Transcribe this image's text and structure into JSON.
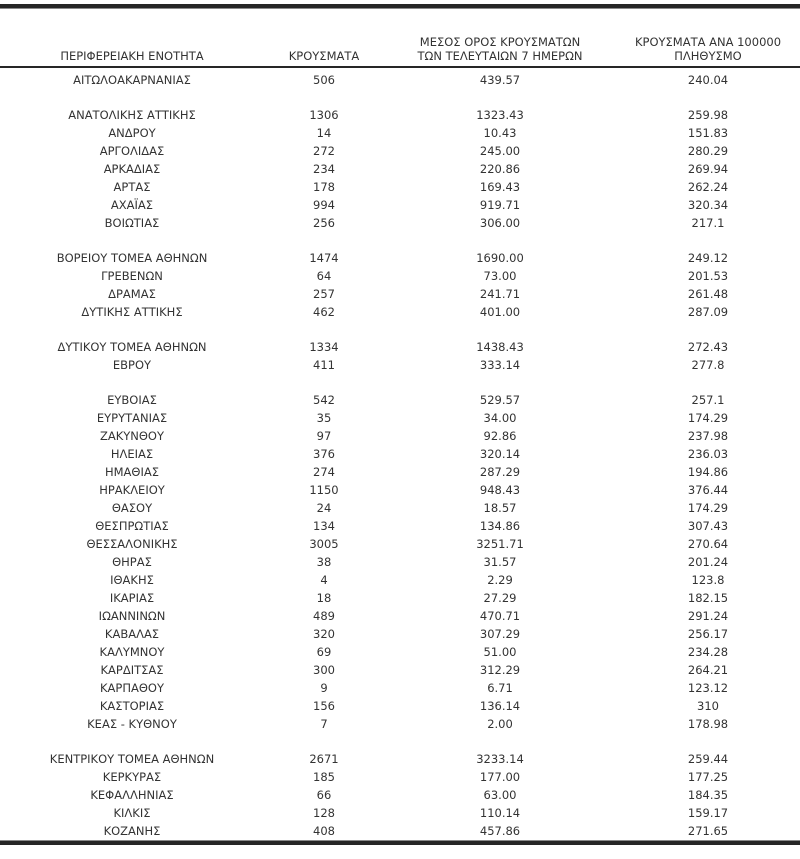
{
  "colors": {
    "text": "#333333",
    "rule": "#262626",
    "background": "#ffffff"
  },
  "header": {
    "col1": "ΠΕΡΙΦΕΡΕΙΑΚΗ ΕΝΟΤΗΤΑ",
    "col2": "ΚΡΟΥΣΜΑΤΑ",
    "col3": "ΜΕΣΟΣ ΟΡΟΣ ΚΡΟΥΣΜΑΤΩΝ\nΤΩΝ ΤΕΛΕΥΤΑΙΩΝ 7 ΗΜΕΡΩΝ",
    "col4": "ΚΡΟΥΣΜΑΤΑ ΑΝΑ 100000\nΠΛΗΘΥΣΜΟ"
  },
  "chart_data": {
    "type": "table",
    "columns": [
      "ΠΕΡΙΦΕΡΕΙΑΚΗ ΕΝΟΤΗΤΑ",
      "ΚΡΟΥΣΜΑΤΑ",
      "ΜΕΣΟΣ ΟΡΟΣ ΚΡΟΥΣΜΑΤΩΝ ΤΩΝ ΤΕΛΕΥΤΑΙΩΝ 7 ΗΜΕΡΩΝ",
      "ΚΡΟΥΣΜΑΤΑ ΑΝΑ 100000 ΠΛΗΘΥΣΜΟ"
    ],
    "groups": [
      [
        [
          "ΑΙΤΩΛΟΑΚΑΡΝΑΝΙΑΣ",
          "506",
          "439.57",
          "240.04"
        ]
      ],
      [
        [
          "ΑΝΑΤΟΛΙΚΗΣ ΑΤΤΙΚΗΣ",
          "1306",
          "1323.43",
          "259.98"
        ],
        [
          "ΑΝΔΡΟΥ",
          "14",
          "10.43",
          "151.83"
        ],
        [
          "ΑΡΓΟΛΙΔΑΣ",
          "272",
          "245.00",
          "280.29"
        ],
        [
          "ΑΡΚΑΔΙΑΣ",
          "234",
          "220.86",
          "269.94"
        ],
        [
          "ΑΡΤΑΣ",
          "178",
          "169.43",
          "262.24"
        ],
        [
          "ΑΧΑΪΑΣ",
          "994",
          "919.71",
          "320.34"
        ],
        [
          "ΒΟΙΩΤΙΑΣ",
          "256",
          "306.00",
          "217.1"
        ]
      ],
      [
        [
          "ΒΟΡΕΙΟΥ ΤΟΜΕΑ ΑΘΗΝΩΝ",
          "1474",
          "1690.00",
          "249.12"
        ],
        [
          "ΓΡΕΒΕΝΩΝ",
          "64",
          "73.00",
          "201.53"
        ],
        [
          "ΔΡΑΜΑΣ",
          "257",
          "241.71",
          "261.48"
        ],
        [
          "ΔΥΤΙΚΗΣ ΑΤΤΙΚΗΣ",
          "462",
          "401.00",
          "287.09"
        ]
      ],
      [
        [
          "ΔΥΤΙΚΟΥ ΤΟΜΕΑ ΑΘΗΝΩΝ",
          "1334",
          "1438.43",
          "272.43"
        ],
        [
          "ΕΒΡΟΥ",
          "411",
          "333.14",
          "277.8"
        ]
      ],
      [
        [
          "ΕΥΒΟΙΑΣ",
          "542",
          "529.57",
          "257.1"
        ],
        [
          "ΕΥΡΥΤΑΝΙΑΣ",
          "35",
          "34.00",
          "174.29"
        ],
        [
          "ΖΑΚΥΝΘΟΥ",
          "97",
          "92.86",
          "237.98"
        ],
        [
          "ΗΛΕΙΑΣ",
          "376",
          "320.14",
          "236.03"
        ],
        [
          "ΗΜΑΘΙΑΣ",
          "274",
          "287.29",
          "194.86"
        ],
        [
          "ΗΡΑΚΛΕΙΟΥ",
          "1150",
          "948.43",
          "376.44"
        ],
        [
          "ΘΑΣΟΥ",
          "24",
          "18.57",
          "174.29"
        ],
        [
          "ΘΕΣΠΡΩΤΙΑΣ",
          "134",
          "134.86",
          "307.43"
        ],
        [
          "ΘΕΣΣΑΛΟΝΙΚΗΣ",
          "3005",
          "3251.71",
          "270.64"
        ],
        [
          "ΘΗΡΑΣ",
          "38",
          "31.57",
          "201.24"
        ],
        [
          "ΙΘΑΚΗΣ",
          "4",
          "2.29",
          "123.8"
        ],
        [
          "ΙΚΑΡΙΑΣ",
          "18",
          "27.29",
          "182.15"
        ],
        [
          "ΙΩΑΝΝΙΝΩΝ",
          "489",
          "470.71",
          "291.24"
        ],
        [
          "ΚΑΒΑΛΑΣ",
          "320",
          "307.29",
          "256.17"
        ],
        [
          "ΚΑΛΥΜΝΟΥ",
          "69",
          "51.00",
          "234.28"
        ],
        [
          "ΚΑΡΔΙΤΣΑΣ",
          "300",
          "312.29",
          "264.21"
        ],
        [
          "ΚΑΡΠΑΘΟΥ",
          "9",
          "6.71",
          "123.12"
        ],
        [
          "ΚΑΣΤΟΡΙΑΣ",
          "156",
          "136.14",
          "310"
        ],
        [
          "ΚΕΑΣ - ΚΥΘΝΟΥ",
          "7",
          "2.00",
          "178.98"
        ]
      ],
      [
        [
          "ΚΕΝΤΡΙΚΟΥ ΤΟΜΕΑ ΑΘΗΝΩΝ",
          "2671",
          "3233.14",
          "259.44"
        ],
        [
          "ΚΕΡΚΥΡΑΣ",
          "185",
          "177.00",
          "177.25"
        ],
        [
          "ΚΕΦΑΛΛΗΝΙΑΣ",
          "66",
          "63.00",
          "184.35"
        ],
        [
          "ΚΙΛΚΙΣ",
          "128",
          "110.14",
          "159.17"
        ],
        [
          "ΚΟΖΑΝΗΣ",
          "408",
          "457.86",
          "271.65"
        ]
      ]
    ]
  }
}
